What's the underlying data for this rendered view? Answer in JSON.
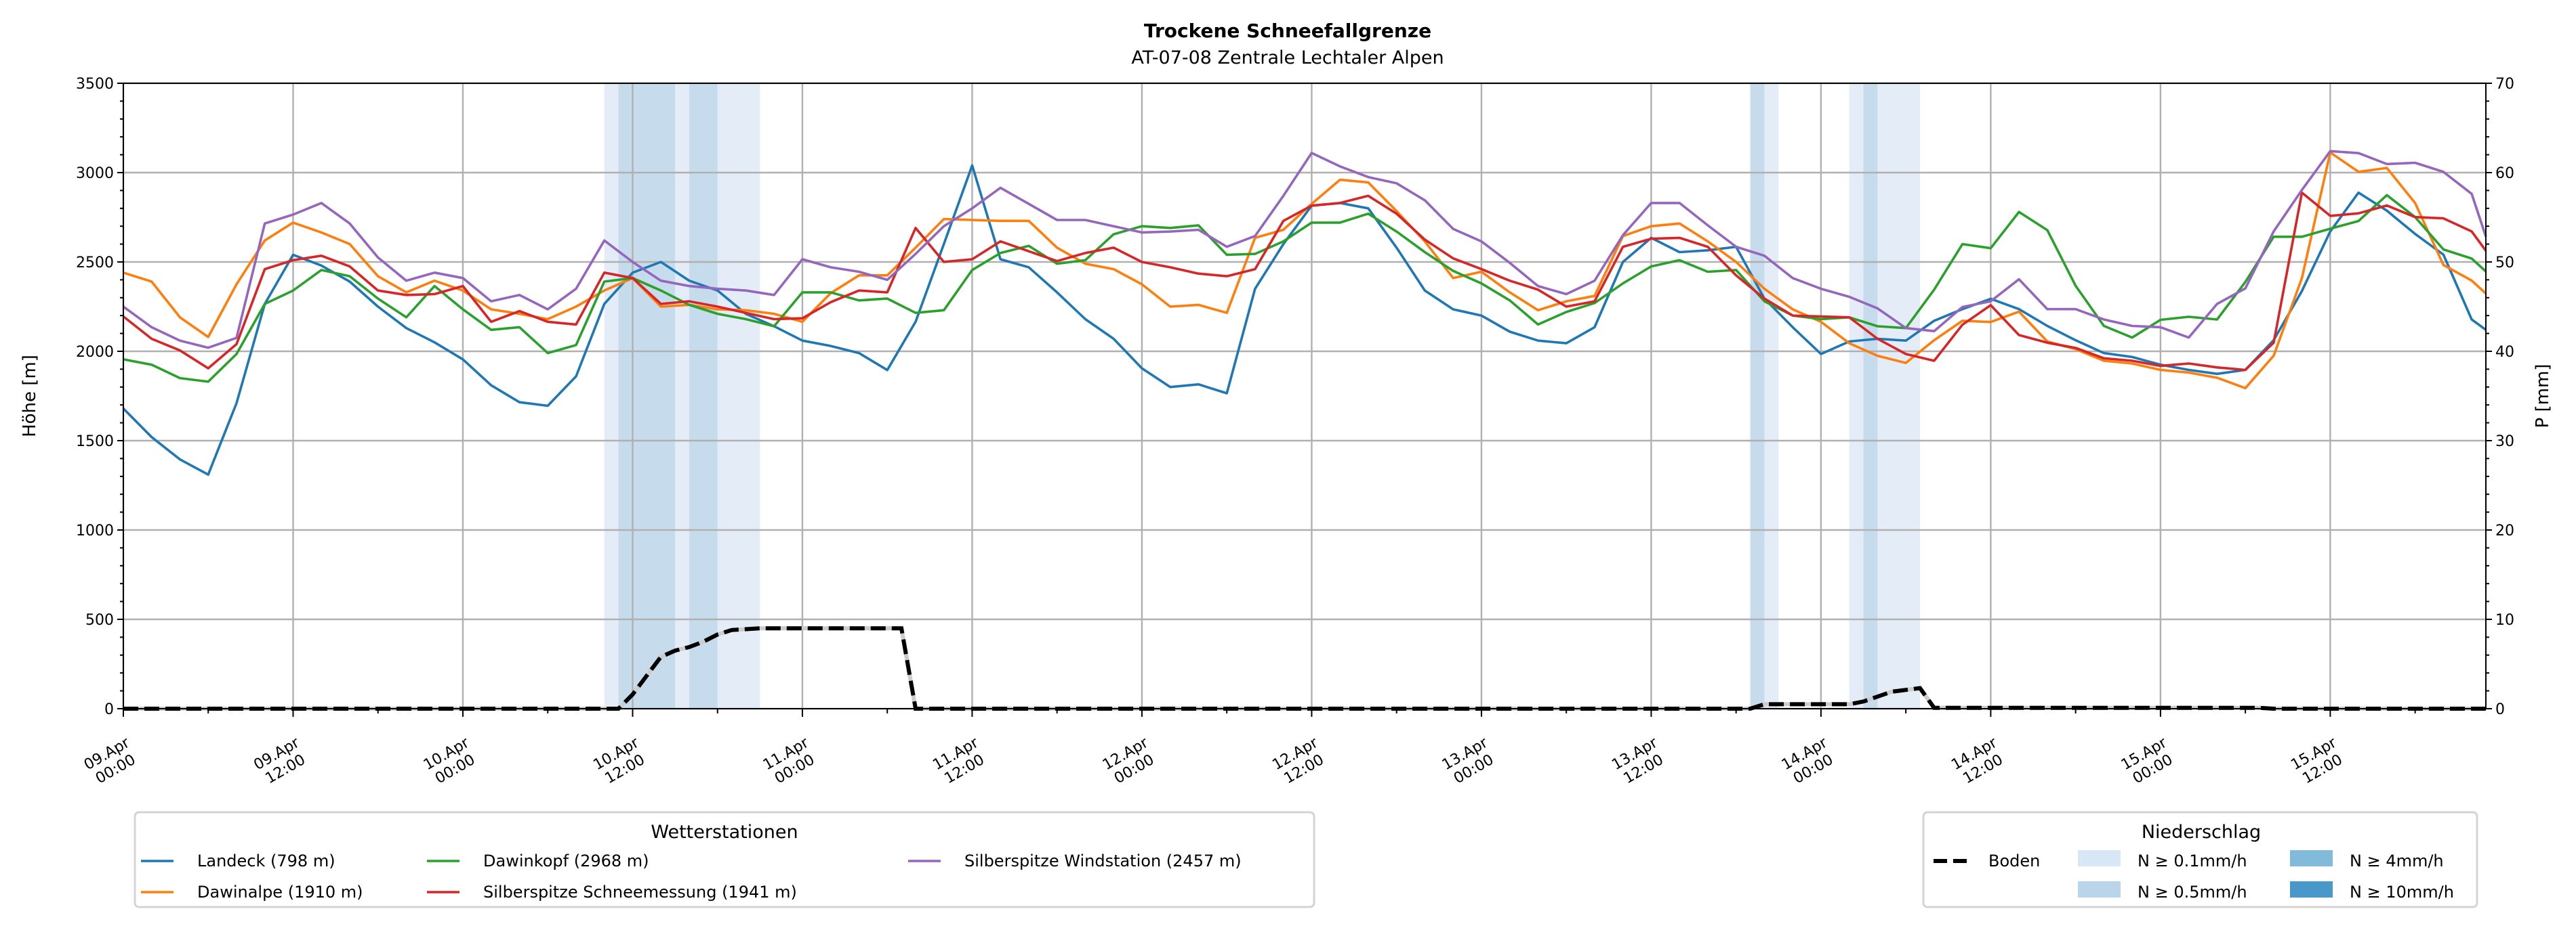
{
  "chart_data": {
    "type": "line",
    "title": "Trockene Schneefallgrenze",
    "subtitle": "AT-07-08 Zentrale Lechtaler Alpen",
    "ylabel": "Höhe [m]",
    "ylabel_right": "P [mm]",
    "ylim": [
      0,
      3500
    ],
    "ylim_right": [
      0,
      70
    ],
    "xlim_hours": [
      0,
      167
    ],
    "grid": true,
    "yticks": [
      "0",
      "500",
      "1000",
      "1500",
      "2000",
      "2500",
      "3000",
      "3500"
    ],
    "yticks_right": [
      "0",
      "10",
      "20",
      "30",
      "40",
      "50",
      "60",
      "70"
    ],
    "xticks": [
      [
        "09.Apr",
        "00:00"
      ],
      [
        "09.Apr",
        "12:00"
      ],
      [
        "10.Apr",
        "00:00"
      ],
      [
        "10.Apr",
        "12:00"
      ],
      [
        "11.Apr",
        "00:00"
      ],
      [
        "11.Apr",
        "12:00"
      ],
      [
        "12.Apr",
        "00:00"
      ],
      [
        "12.Apr",
        "12:00"
      ],
      [
        "13.Apr",
        "00:00"
      ],
      [
        "13.Apr",
        "12:00"
      ],
      [
        "14.Apr",
        "00:00"
      ],
      [
        "14.Apr",
        "12:00"
      ],
      [
        "15.Apr",
        "00:00"
      ],
      [
        "15.Apr",
        "12:00"
      ]
    ],
    "x_hours": [
      0,
      2,
      4,
      6,
      8,
      10,
      12,
      14,
      16,
      18,
      20,
      22,
      24,
      26,
      28,
      30,
      32,
      34,
      36,
      38,
      40,
      42,
      44,
      46,
      48,
      50,
      52,
      54,
      56,
      58,
      60,
      62,
      64,
      66,
      68,
      70,
      72,
      74,
      76,
      78,
      80,
      82,
      84,
      86,
      88,
      90,
      92,
      94,
      96,
      98,
      100,
      102,
      104,
      106,
      108,
      110,
      112,
      114,
      116,
      118,
      120,
      122,
      124,
      126,
      128,
      130,
      132,
      134,
      136,
      138,
      140,
      142,
      144,
      146,
      148,
      150,
      152,
      154,
      156,
      158,
      160,
      162,
      164,
      166,
      167
    ],
    "series": [
      {
        "name": "Landeck (798 m)",
        "color": "#1f77b4",
        "values": [
          1680,
          1520,
          1395,
          1310,
          1710,
          2265,
          2540,
          2480,
          2390,
          2250,
          2130,
          2050,
          1955,
          1810,
          1715,
          1695,
          1860,
          2265,
          2440,
          2500,
          2395,
          2340,
          2210,
          2140,
          2060,
          2030,
          1990,
          1895,
          2165,
          2600,
          3040,
          2515,
          2470,
          2330,
          2180,
          2070,
          1905,
          1800,
          1815,
          1765,
          2350,
          2600,
          2815,
          2830,
          2800,
          2580,
          2340,
          2235,
          2200,
          2110,
          2060,
          2045,
          2135,
          2500,
          2635,
          2555,
          2565,
          2585,
          2295,
          2135,
          1985,
          2055,
          2070,
          2060,
          2171,
          2236,
          2294,
          2236,
          2142,
          2062,
          1990,
          1968,
          1925,
          1896,
          1874,
          1896,
          2062,
          2338,
          2671,
          2888,
          2787,
          2657,
          2541,
          2178,
          2120
        ]
      },
      {
        "name": "Dawinalpe (1910 m)",
        "color": "#ff7f0e",
        "values": [
          2440,
          2390,
          2190,
          2080,
          2375,
          2620,
          2720,
          2665,
          2600,
          2420,
          2330,
          2395,
          2340,
          2235,
          2210,
          2180,
          2250,
          2340,
          2410,
          2250,
          2260,
          2235,
          2230,
          2210,
          2165,
          2325,
          2425,
          2425,
          2580,
          2740,
          2735,
          2730,
          2730,
          2580,
          2490,
          2460,
          2375,
          2250,
          2260,
          2215,
          2635,
          2680,
          2825,
          2960,
          2945,
          2785,
          2615,
          2410,
          2445,
          2330,
          2230,
          2280,
          2310,
          2645,
          2700,
          2715,
          2615,
          2500,
          2350,
          2235,
          2165,
          2045,
          1975,
          1935,
          2062,
          2171,
          2164,
          2222,
          2055,
          2012,
          1947,
          1932,
          1896,
          1881,
          1852,
          1794,
          1975,
          2410,
          3113,
          3004,
          3026,
          2830,
          2483,
          2396,
          2323
        ]
      },
      {
        "name": "Dawinkopf (2968 m)",
        "color": "#2ca02c",
        "values": [
          1955,
          1925,
          1850,
          1830,
          1985,
          2265,
          2340,
          2455,
          2420,
          2295,
          2190,
          2365,
          2235,
          2120,
          2135,
          1990,
          2035,
          2390,
          2410,
          2340,
          2260,
          2210,
          2180,
          2140,
          2330,
          2330,
          2285,
          2295,
          2215,
          2230,
          2455,
          2550,
          2590,
          2490,
          2510,
          2655,
          2700,
          2690,
          2705,
          2540,
          2545,
          2615,
          2720,
          2720,
          2770,
          2670,
          2555,
          2450,
          2380,
          2285,
          2150,
          2220,
          2270,
          2380,
          2475,
          2510,
          2445,
          2455,
          2280,
          2200,
          2180,
          2190,
          2140,
          2130,
          2345,
          2600,
          2577,
          2780,
          2678,
          2367,
          2142,
          2077,
          2176,
          2193,
          2178,
          2388,
          2641,
          2641,
          2686,
          2729,
          2874,
          2751,
          2570,
          2519,
          2447
        ]
      },
      {
        "name": "Silberspitze Schneemessung (1941 m)",
        "color": "#d62728",
        "values": [
          2195,
          2070,
          2005,
          1905,
          2040,
          2460,
          2510,
          2535,
          2475,
          2340,
          2315,
          2320,
          2365,
          2165,
          2225,
          2165,
          2150,
          2440,
          2410,
          2265,
          2280,
          2250,
          2215,
          2180,
          2185,
          2275,
          2340,
          2330,
          2690,
          2500,
          2515,
          2615,
          2560,
          2505,
          2550,
          2580,
          2500,
          2470,
          2435,
          2420,
          2460,
          2730,
          2815,
          2830,
          2870,
          2770,
          2625,
          2520,
          2460,
          2395,
          2345,
          2250,
          2280,
          2585,
          2630,
          2635,
          2585,
          2425,
          2295,
          2200,
          2195,
          2190,
          2070,
          1985,
          1947,
          2149,
          2258,
          2091,
          2048,
          2019,
          1961,
          1947,
          1918,
          1932,
          1910,
          1896,
          2048,
          2888,
          2758,
          2772,
          2816,
          2751,
          2744,
          2671,
          2563
        ]
      },
      {
        "name": "Silberspitze Windstation (2457 m)",
        "color": "#9467bd",
        "values": [
          2250,
          2135,
          2060,
          2020,
          2075,
          2715,
          2765,
          2830,
          2715,
          2525,
          2395,
          2440,
          2410,
          2280,
          2315,
          2235,
          2350,
          2620,
          2500,
          2395,
          2365,
          2350,
          2340,
          2315,
          2515,
          2470,
          2445,
          2400,
          2545,
          2700,
          2800,
          2915,
          2825,
          2735,
          2735,
          2700,
          2665,
          2670,
          2680,
          2585,
          2645,
          2870,
          3110,
          3035,
          2975,
          2940,
          2845,
          2685,
          2615,
          2495,
          2365,
          2320,
          2395,
          2650,
          2830,
          2830,
          2705,
          2585,
          2535,
          2410,
          2350,
          2305,
          2240,
          2130,
          2113,
          2248,
          2280,
          2403,
          2236,
          2236,
          2178,
          2142,
          2135,
          2077,
          2265,
          2352,
          2671,
          2903,
          3120,
          3109,
          3048,
          3055,
          3004,
          2881,
          2642
        ]
      }
    ],
    "boden": {
      "name": "Boden",
      "color": "#000000",
      "points": [
        [
          0,
          0
        ],
        [
          35,
          0
        ],
        [
          36,
          1.6
        ],
        [
          38,
          5.8
        ],
        [
          39,
          6.5
        ],
        [
          40,
          6.9
        ],
        [
          41,
          7.5
        ],
        [
          42,
          8.3
        ],
        [
          43,
          8.8
        ],
        [
          45,
          9.0
        ],
        [
          55,
          9.0
        ],
        [
          56,
          0
        ],
        [
          115,
          0
        ],
        [
          116,
          0.5
        ],
        [
          122,
          0.5
        ],
        [
          123,
          0.8
        ],
        [
          125,
          1.9
        ],
        [
          127,
          2.3
        ],
        [
          128,
          0.1
        ],
        [
          151,
          0.1
        ],
        [
          152,
          0
        ],
        [
          167,
          0
        ]
      ]
    },
    "precip_levels": [
      {
        "label": "N ≥ 0.1mm/h",
        "color": "#d8e7f5",
        "band_color": "#e4edf7"
      },
      {
        "label": "N ≥ 0.5mm/h",
        "color": "#b9d5ea",
        "band_color": "#c6dcec"
      },
      {
        "label": "N ≥ 4mm/h",
        "color": "#82bada",
        "band_color": "#9cc7e2"
      },
      {
        "label": "N ≥ 10mm/h",
        "color": "#4a98c9",
        "band_color": "#6aa9d3"
      }
    ],
    "precip_bands": [
      {
        "start": 34,
        "end": 45,
        "level": 0
      },
      {
        "start": 35,
        "end": 39,
        "level": 1
      },
      {
        "start": 40,
        "end": 42,
        "level": 1
      },
      {
        "start": 115,
        "end": 117,
        "level": 0
      },
      {
        "start": 115,
        "end": 116,
        "level": 1
      },
      {
        "start": 122,
        "end": 127,
        "level": 0
      },
      {
        "start": 123,
        "end": 124,
        "level": 1
      }
    ],
    "legend_stations": {
      "title": "Wetterstationen",
      "placement": "bottom-left"
    },
    "legend_precip": {
      "title": "Niederschlag",
      "placement": "bottom-right"
    }
  }
}
